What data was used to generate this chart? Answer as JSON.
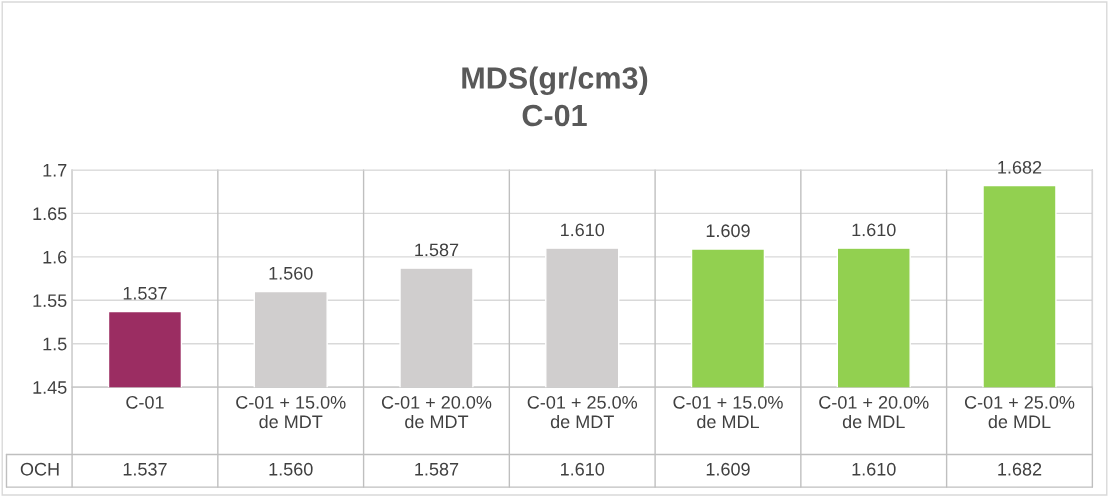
{
  "chart_data": {
    "type": "bar",
    "title": "MDS(gr/cm3)\nC-01",
    "categories": [
      "C-01",
      "C-01 + 15.0%\nde MDT",
      "C-01 + 20.0%\nde MDT",
      "C-01 + 25.0%\nde MDT",
      "C-01 + 15.0%\nde MDL",
      "C-01 + 20.0%\nde MDL",
      "C-01 + 25.0%\nde MDL"
    ],
    "series": [
      {
        "name": "OCH",
        "colors": [
          "#9b2d62",
          "#d0cece",
          "#d0cece",
          "#d0cece",
          "#92d050",
          "#92d050",
          "#92d050"
        ],
        "values": [
          1.537,
          1.56,
          1.587,
          1.61,
          1.609,
          1.61,
          1.682
        ],
        "value_labels": [
          "1.537",
          "1.560",
          "1.587",
          "1.610",
          "1.609",
          "1.610",
          "1.682"
        ]
      }
    ],
    "ylim": [
      1.45,
      1.7
    ],
    "yticks": [
      1.45,
      1.5,
      1.55,
      1.6,
      1.65,
      1.7
    ],
    "grid": "y"
  }
}
